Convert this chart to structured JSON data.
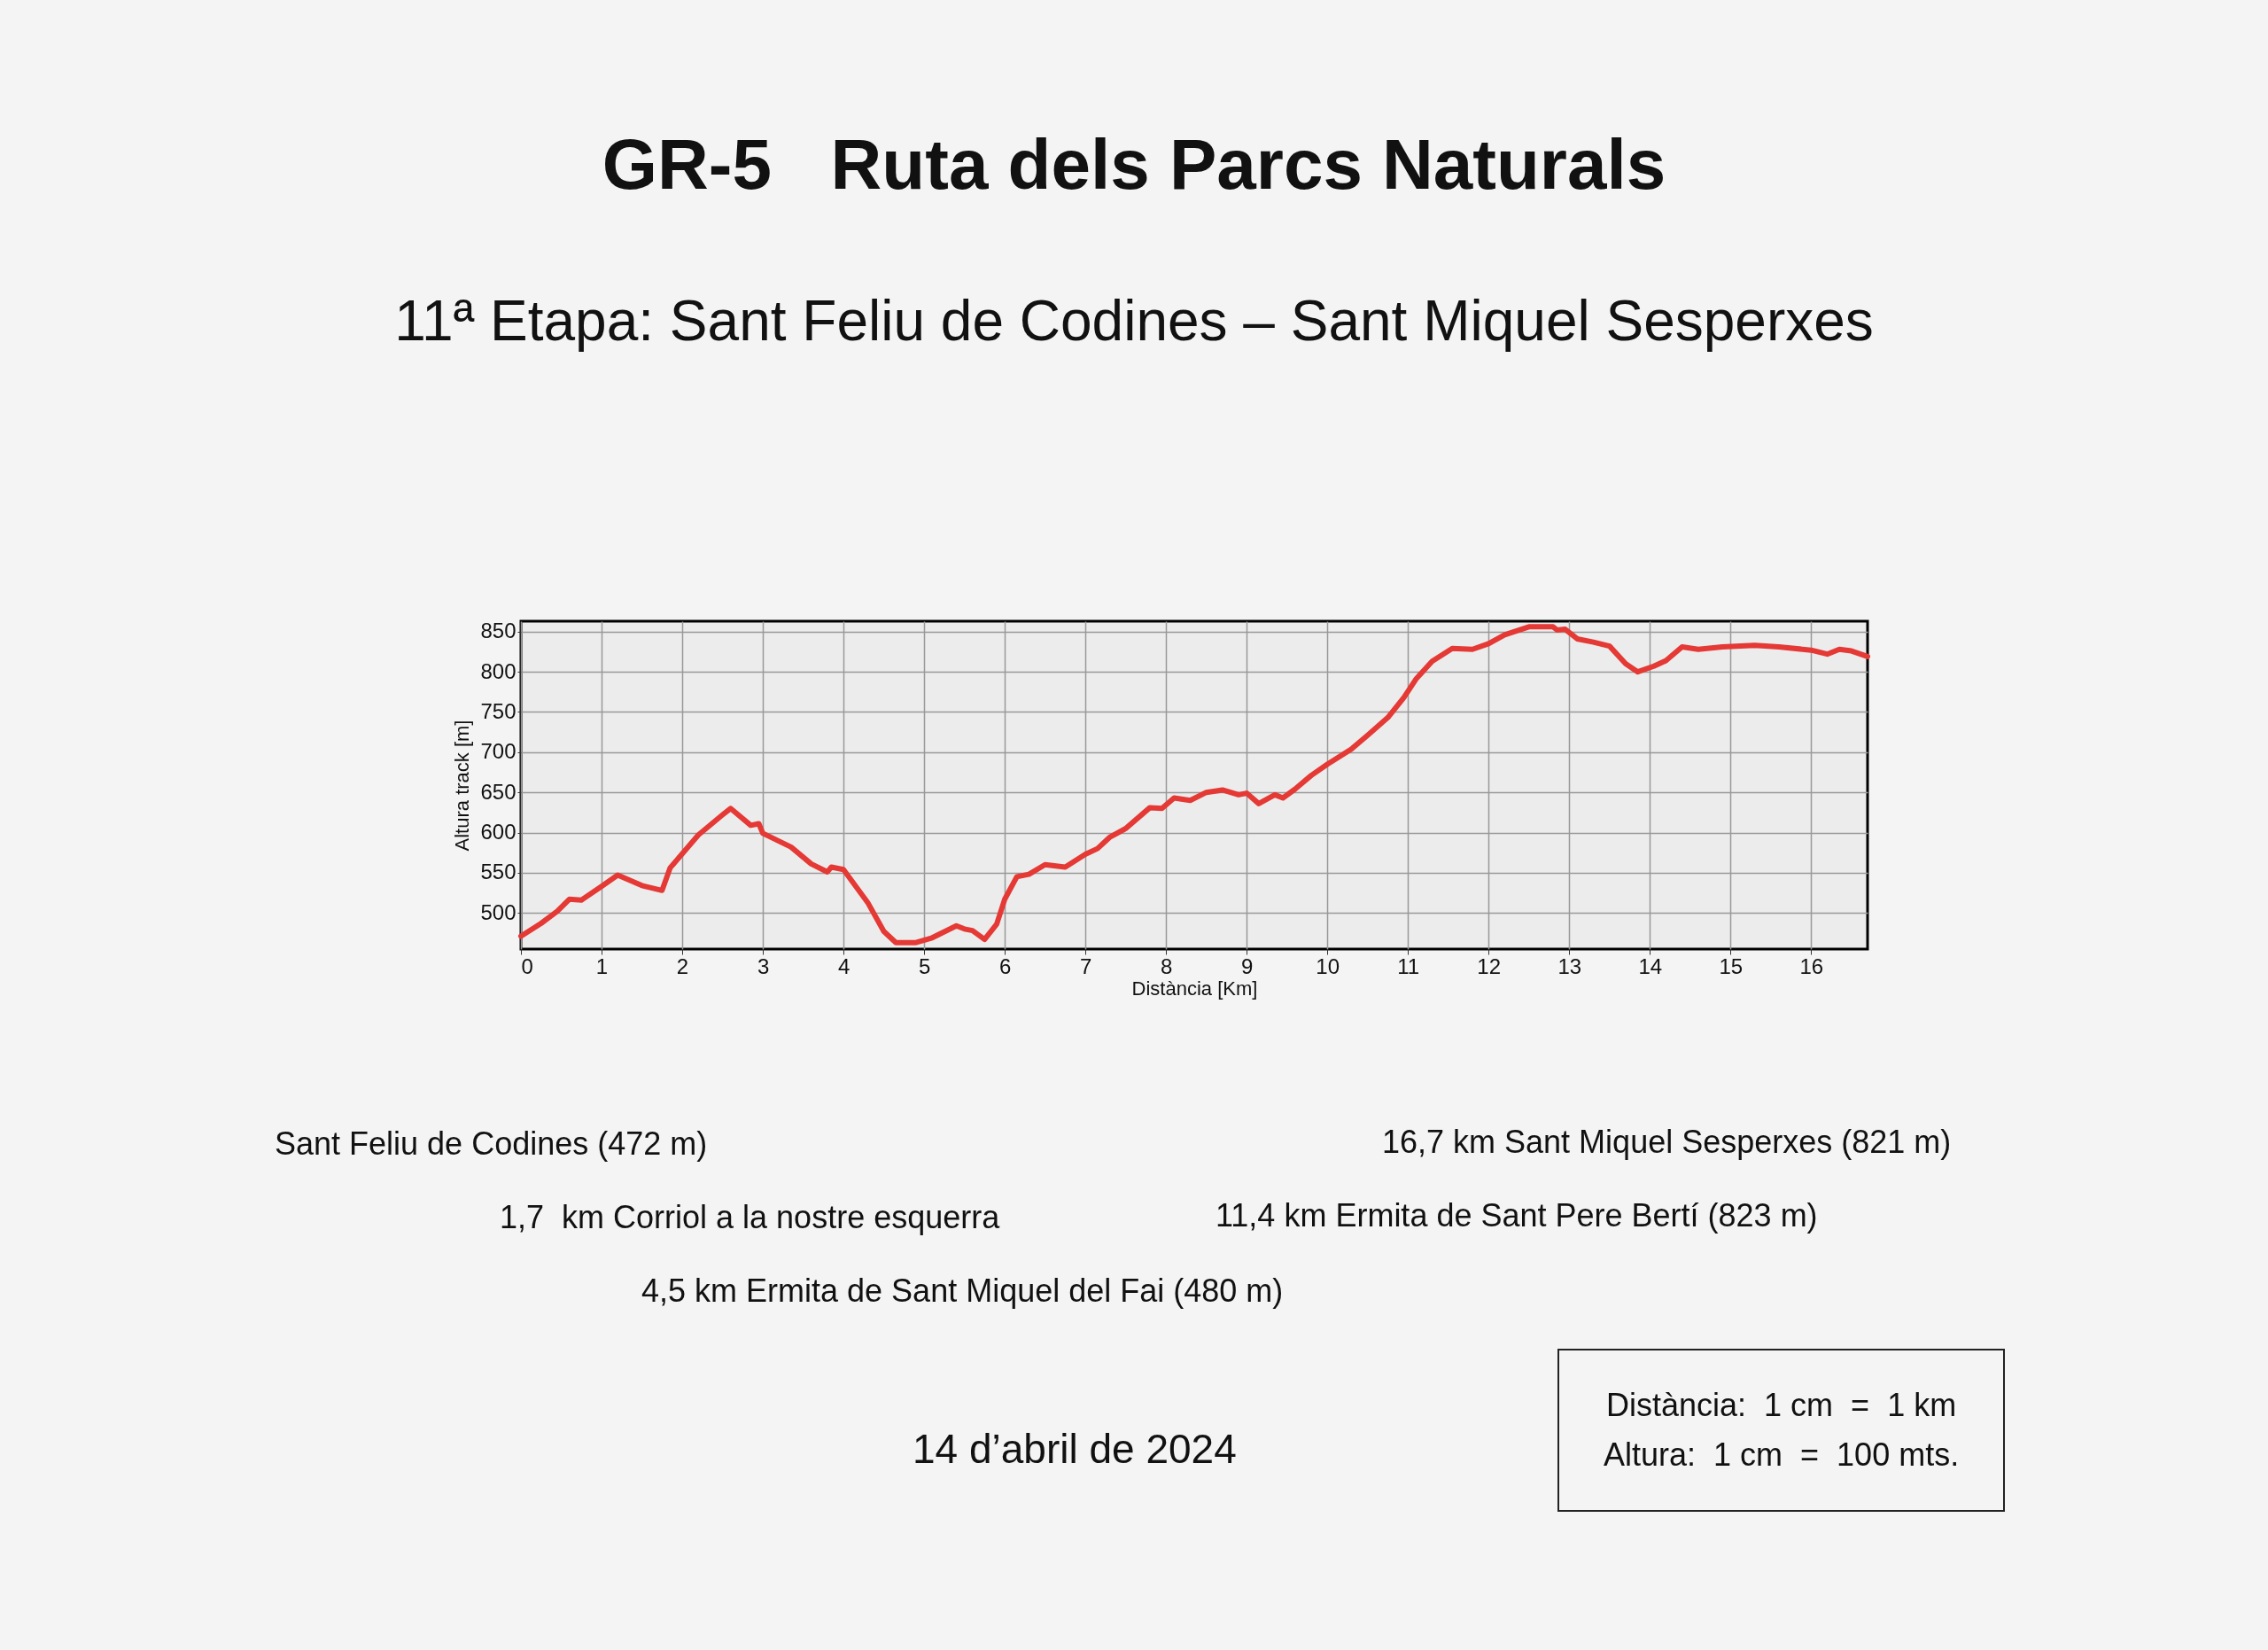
{
  "chart_data": {
    "type": "line",
    "title": "GR-5   Ruta dels Parcs Naturals",
    "subtitle": "11ª Etapa: Sant Feliu de Codines – Sant Miquel Sesperxes",
    "xlabel": "Distància [Km]",
    "ylabel": "Altura track [m]",
    "xlim": [
      0,
      16.7
    ],
    "xticks": [
      0,
      1,
      2,
      3,
      4,
      5,
      6,
      7,
      8,
      9,
      10,
      11,
      12,
      13,
      14,
      15,
      16
    ],
    "ylim": [
      455,
      863
    ],
    "yticks": [
      500,
      550,
      600,
      650,
      700,
      750,
      800,
      850
    ],
    "grid": true,
    "series": [
      {
        "color": "#e53935",
        "x": [
          0,
          0.25,
          0.45,
          0.6,
          0.75,
          1.0,
          1.2,
          1.5,
          1.75,
          1.85,
          2.2,
          2.5,
          2.6,
          2.85,
          2.95,
          3.0,
          3.35,
          3.6,
          3.8,
          3.85,
          4.0,
          4.3,
          4.5,
          4.65,
          4.9,
          5.1,
          5.4,
          5.5,
          5.6,
          5.75,
          5.9,
          6.0,
          6.15,
          6.3,
          6.5,
          6.75,
          7.0,
          7.15,
          7.3,
          7.5,
          7.8,
          7.95,
          8.1,
          8.3,
          8.5,
          8.7,
          8.9,
          9.0,
          9.15,
          9.35,
          9.45,
          9.6,
          9.8,
          10.0,
          10.3,
          10.5,
          10.75,
          10.95,
          11.1,
          11.3,
          11.55,
          11.8,
          12.0,
          12.2,
          12.5,
          12.8,
          12.85,
          12.95,
          13.1,
          13.3,
          13.5,
          13.7,
          13.85,
          14.05,
          14.2,
          14.4,
          14.6,
          14.9,
          15.3,
          15.6,
          16.0,
          16.2,
          16.35,
          16.5,
          16.7
        ],
        "values": [
          471,
          487,
          502,
          517,
          516,
          533,
          547,
          534,
          528,
          556,
          597,
          622,
          630,
          609,
          611,
          599,
          582,
          561,
          551,
          557,
          554,
          513,
          477,
          463,
          463,
          469,
          484,
          480,
          478,
          467,
          486,
          517,
          545,
          548,
          560,
          557,
          573,
          580,
          594,
          605,
          631,
          630,
          643,
          640,
          650,
          653,
          647,
          649,
          636,
          647,
          643,
          654,
          671,
          685,
          704,
          721,
          743,
          768,
          791,
          813,
          829,
          828,
          835,
          846,
          856,
          856,
          852,
          853,
          841,
          837,
          832,
          810,
          800,
          807,
          814,
          831,
          828,
          831,
          833,
          831,
          827,
          822,
          828,
          826,
          819
        ]
      }
    ],
    "annotations": [
      "Sant Feliu de Codines (472 m)",
      "16,7 km Sant Miquel Sesperxes (821 m)",
      "1,7  km Corriol a la nostre esquerra",
      "11,4 km Ermita de Sant Pere Bertí (823 m)",
      "4,5 km Ermita de Sant Miquel del Fai (480 m)",
      "14 d’abril de 2024",
      "Distància:  1 cm  =  1 km\nAltura:  1 cm  =  100 mts."
    ]
  }
}
